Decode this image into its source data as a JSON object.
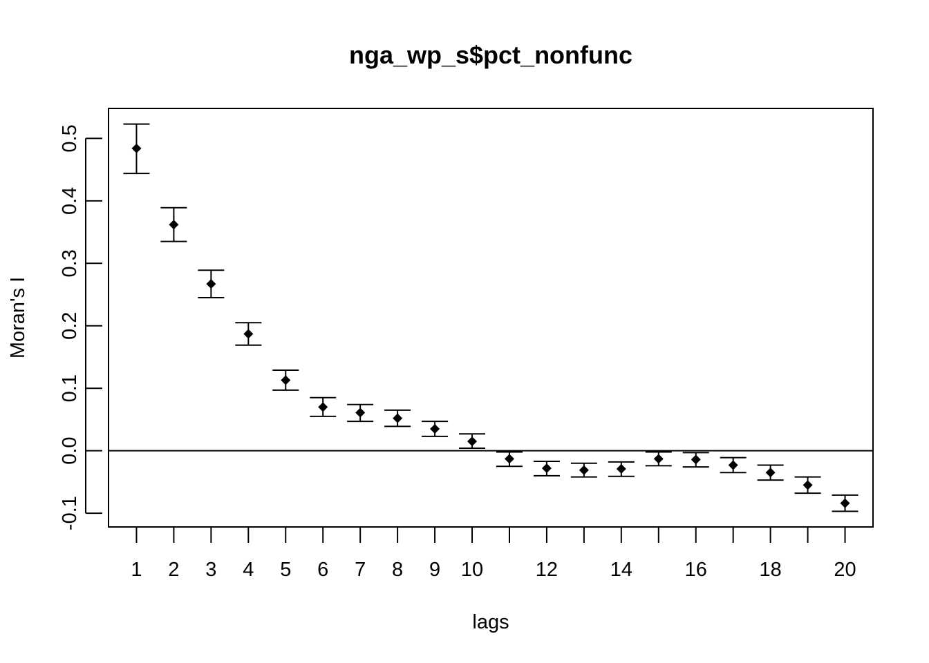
{
  "chart_data": {
    "type": "scatter",
    "title": "nga_wp_s$pct_nonfunc",
    "xlabel": "lags",
    "ylabel": "Moran's  I",
    "xlim": [
      0.25,
      20.75
    ],
    "ylim": [
      -0.122,
      0.548
    ],
    "x_tick_labels": [
      {
        "value": 1,
        "label": "1"
      },
      {
        "value": 2,
        "label": "2"
      },
      {
        "value": 3,
        "label": "3"
      },
      {
        "value": 4,
        "label": "4"
      },
      {
        "value": 5,
        "label": "5"
      },
      {
        "value": 6,
        "label": "6"
      },
      {
        "value": 7,
        "label": "7"
      },
      {
        "value": 8,
        "label": "8"
      },
      {
        "value": 9,
        "label": "9"
      },
      {
        "value": 10,
        "label": "10"
      },
      {
        "value": 12,
        "label": "12"
      },
      {
        "value": 14,
        "label": "14"
      },
      {
        "value": 16,
        "label": "16"
      },
      {
        "value": 18,
        "label": "18"
      },
      {
        "value": 20,
        "label": "20"
      }
    ],
    "x_tick_marks": [
      1,
      2,
      3,
      4,
      5,
      6,
      7,
      8,
      9,
      10,
      11,
      12,
      13,
      14,
      15,
      16,
      17,
      18,
      19,
      20
    ],
    "y_ticks": [
      {
        "value": -0.1,
        "label": "-0.1"
      },
      {
        "value": 0.0,
        "label": "0.0"
      },
      {
        "value": 0.1,
        "label": "0.1"
      },
      {
        "value": 0.2,
        "label": "0.2"
      },
      {
        "value": 0.3,
        "label": "0.3"
      },
      {
        "value": 0.4,
        "label": "0.4"
      },
      {
        "value": 0.5,
        "label": "0.5"
      }
    ],
    "reference_line": 0.0,
    "grid": false,
    "points": [
      {
        "lag": 1,
        "value": 0.484,
        "lower": 0.444,
        "upper": 0.523
      },
      {
        "lag": 2,
        "value": 0.362,
        "lower": 0.335,
        "upper": 0.389
      },
      {
        "lag": 3,
        "value": 0.267,
        "lower": 0.245,
        "upper": 0.289
      },
      {
        "lag": 4,
        "value": 0.187,
        "lower": 0.169,
        "upper": 0.205
      },
      {
        "lag": 5,
        "value": 0.113,
        "lower": 0.097,
        "upper": 0.129
      },
      {
        "lag": 6,
        "value": 0.07,
        "lower": 0.055,
        "upper": 0.085
      },
      {
        "lag": 7,
        "value": 0.061,
        "lower": 0.047,
        "upper": 0.074
      },
      {
        "lag": 8,
        "value": 0.052,
        "lower": 0.039,
        "upper": 0.065
      },
      {
        "lag": 9,
        "value": 0.035,
        "lower": 0.023,
        "upper": 0.047
      },
      {
        "lag": 10,
        "value": 0.015,
        "lower": 0.004,
        "upper": 0.027
      },
      {
        "lag": 11,
        "value": -0.013,
        "lower": -0.025,
        "upper": -0.002
      },
      {
        "lag": 12,
        "value": -0.028,
        "lower": -0.04,
        "upper": -0.017
      },
      {
        "lag": 13,
        "value": -0.031,
        "lower": -0.042,
        "upper": -0.02
      },
      {
        "lag": 14,
        "value": -0.029,
        "lower": -0.041,
        "upper": -0.018
      },
      {
        "lag": 15,
        "value": -0.013,
        "lower": -0.024,
        "upper": -0.002
      },
      {
        "lag": 16,
        "value": -0.014,
        "lower": -0.026,
        "upper": -0.003
      },
      {
        "lag": 17,
        "value": -0.023,
        "lower": -0.035,
        "upper": -0.011
      },
      {
        "lag": 18,
        "value": -0.035,
        "lower": -0.047,
        "upper": -0.023
      },
      {
        "lag": 19,
        "value": -0.055,
        "lower": -0.068,
        "upper": -0.042
      },
      {
        "lag": 20,
        "value": -0.084,
        "lower": -0.097,
        "upper": -0.071
      }
    ],
    "colors": {
      "ink": "#000000",
      "background": "#ffffff"
    }
  }
}
